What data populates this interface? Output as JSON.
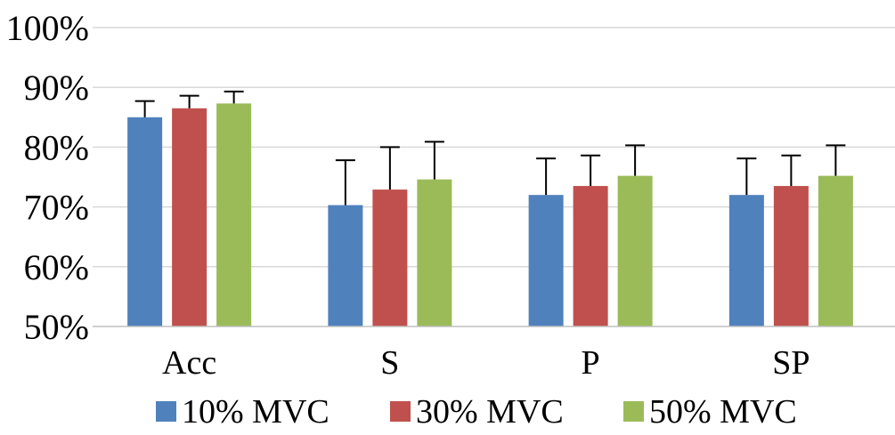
{
  "chart_data": {
    "type": "bar",
    "categories": [
      "Acc",
      "S",
      "P",
      "SP"
    ],
    "series": [
      {
        "name": "10% MVC",
        "color": "#4f81bd",
        "values": [
          85.0,
          70.3,
          72.0,
          72.0
        ],
        "errors": [
          2.7,
          7.5,
          6.1,
          6.1
        ]
      },
      {
        "name": "30% MVC",
        "color": "#c0504d",
        "values": [
          86.5,
          72.9,
          73.5,
          73.5
        ],
        "errors": [
          2.1,
          7.1,
          5.1,
          5.1
        ]
      },
      {
        "name": "50% MVC",
        "color": "#9bbb59",
        "values": [
          87.3,
          74.6,
          75.2,
          75.2
        ],
        "errors": [
          2.0,
          6.3,
          5.1,
          5.1
        ]
      }
    ],
    "yticks": [
      "50%",
      "60%",
      "70%",
      "80%",
      "90%",
      "100%"
    ],
    "ylim": [
      50,
      100
    ],
    "grid": true,
    "legend_position": "bottom"
  }
}
